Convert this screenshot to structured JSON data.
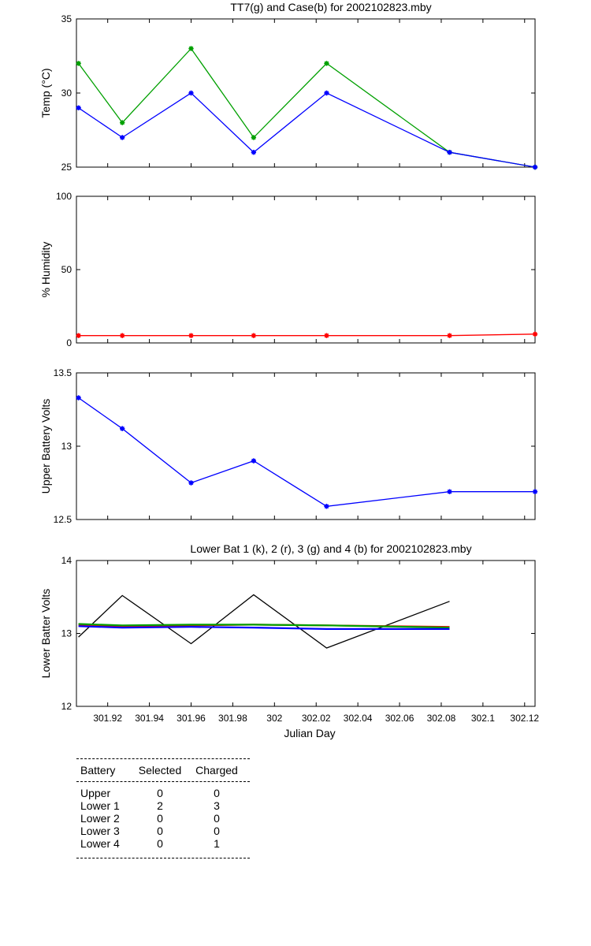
{
  "chart_data": [
    {
      "type": "line",
      "title": "TT7(g) and Case(b) for 2002102823.mby",
      "xlabel": "",
      "ylabel": "Temp  (°C)",
      "xlim": [
        301.905,
        302.125
      ],
      "ylim": [
        25,
        35
      ],
      "yticks": [
        25,
        30,
        35
      ],
      "series": [
        {
          "name": "TT7",
          "color": "#00a000",
          "marker": "*",
          "x": [
            301.906,
            301.927,
            301.96,
            301.99,
            302.025,
            302.084,
            302.125
          ],
          "y": [
            32,
            28,
            33,
            27,
            32,
            26,
            25
          ]
        },
        {
          "name": "Case",
          "color": "#0000ff",
          "marker": "*",
          "x": [
            301.906,
            301.927,
            301.96,
            301.99,
            302.025,
            302.084,
            302.125
          ],
          "y": [
            29,
            27,
            30,
            26,
            30,
            26,
            25
          ]
        }
      ]
    },
    {
      "type": "line",
      "title": "",
      "xlabel": "",
      "ylabel": "% Humidity",
      "xlim": [
        301.905,
        302.125
      ],
      "ylim": [
        0,
        100
      ],
      "yticks": [
        0,
        50,
        100
      ],
      "series": [
        {
          "name": "Humidity",
          "color": "#ff0000",
          "marker": "*",
          "x": [
            301.906,
            301.927,
            301.96,
            301.99,
            302.025,
            302.084,
            302.125
          ],
          "y": [
            5,
            5,
            5,
            5,
            5,
            5,
            6
          ]
        }
      ]
    },
    {
      "type": "line",
      "title": "",
      "xlabel": "",
      "ylabel": "Upper Battery Volts",
      "xlim": [
        301.905,
        302.125
      ],
      "ylim": [
        12.5,
        13.5
      ],
      "yticks": [
        12.5,
        13,
        13.5
      ],
      "series": [
        {
          "name": "Upper",
          "color": "#0000ff",
          "marker": "*",
          "x": [
            301.906,
            301.927,
            301.96,
            301.99,
            302.025,
            302.084,
            302.125
          ],
          "y": [
            13.33,
            13.12,
            12.75,
            12.9,
            12.59,
            12.69,
            12.69
          ]
        }
      ]
    },
    {
      "type": "line",
      "title": "Lower Bat 1 (k), 2 (r), 3 (g) and 4 (b) for 2002102823.mby",
      "xlabel": "Julian Day",
      "ylabel": "Lower Batter Volts",
      "xlim": [
        301.905,
        302.125
      ],
      "ylim": [
        12,
        14
      ],
      "yticks": [
        12,
        13,
        14
      ],
      "xticks": [
        301.92,
        301.94,
        301.96,
        301.98,
        302,
        302.02,
        302.04,
        302.06,
        302.08,
        302.1,
        302.12
      ],
      "xticklabels": [
        "301.92",
        "301.94",
        "301.96",
        "301.98",
        "302",
        "302.02",
        "302.04",
        "302.06",
        "302.08",
        "302.1",
        "302.12"
      ],
      "series": [
        {
          "name": "Lower 1",
          "color": "#000000",
          "marker": "",
          "x": [
            301.906,
            301.927,
            301.96,
            301.99,
            302.025,
            302.084
          ],
          "y": [
            12.95,
            13.52,
            12.86,
            13.53,
            12.8,
            13.44
          ]
        },
        {
          "name": "Lower 2",
          "color": "#ff0000",
          "marker": "",
          "x": [
            301.906,
            301.927,
            301.96,
            301.99,
            302.025,
            302.084
          ],
          "y": [
            13.12,
            13.1,
            13.11,
            13.12,
            13.11,
            13.09
          ]
        },
        {
          "name": "Lower 3",
          "color": "#00a000",
          "marker": "",
          "x": [
            301.906,
            301.927,
            301.96,
            301.99,
            302.025,
            302.084
          ],
          "y": [
            13.13,
            13.11,
            13.12,
            13.12,
            13.11,
            13.08
          ]
        },
        {
          "name": "Lower 4",
          "color": "#0000ff",
          "marker": "",
          "x": [
            301.906,
            301.927,
            301.96,
            301.99,
            302.025,
            302.084
          ],
          "y": [
            13.1,
            13.08,
            13.09,
            13.08,
            13.06,
            13.06
          ]
        }
      ]
    }
  ],
  "battery_table": {
    "headers": [
      "Battery",
      "Selected",
      "Charged"
    ],
    "rows": [
      [
        "Upper",
        "0",
        "0"
      ],
      [
        "Lower 1",
        "2",
        "3"
      ],
      [
        "Lower 2",
        "0",
        "0"
      ],
      [
        "Lower 3",
        "0",
        "0"
      ],
      [
        "Lower 4",
        "0",
        "1"
      ]
    ]
  }
}
